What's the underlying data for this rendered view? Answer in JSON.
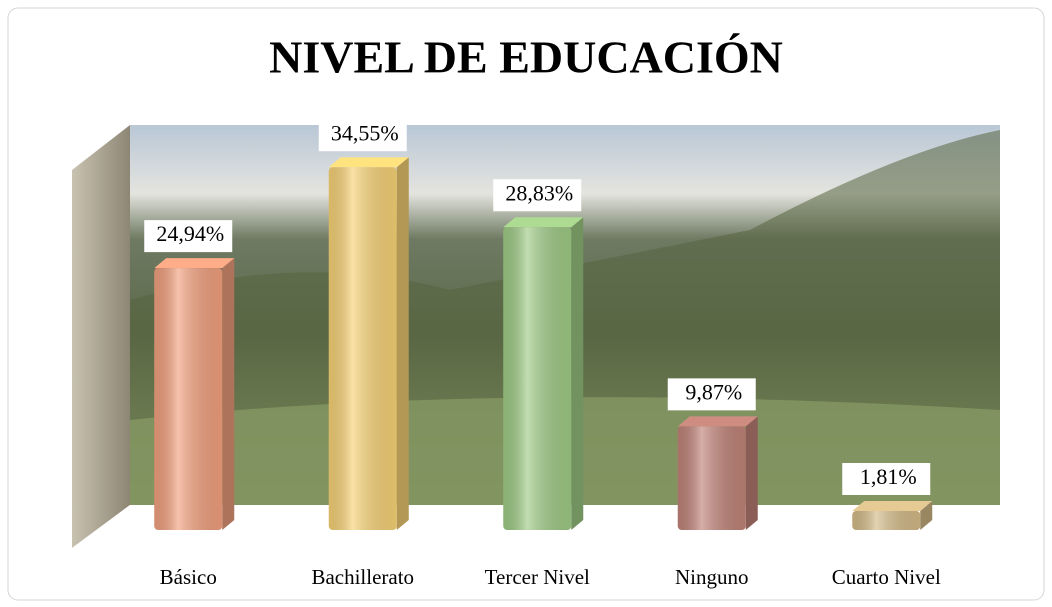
{
  "chart_data": {
    "type": "bar3d",
    "title": "NIVEL DE EDUCACIÓN",
    "categories": [
      "Básico",
      "Bachillerato",
      "Tercer Nivel",
      "Ninguno",
      "Cuarto Nivel"
    ],
    "values": [
      24.94,
      34.55,
      28.83,
      9.87,
      1.81
    ],
    "value_labels": [
      "24,94%",
      "34,55%",
      "28,83%",
      "9,87%",
      "1,81%"
    ],
    "colors": [
      "#f2a07e",
      "#f7d276",
      "#9fcb86",
      "#c08378",
      "#d4bb88"
    ]
  }
}
